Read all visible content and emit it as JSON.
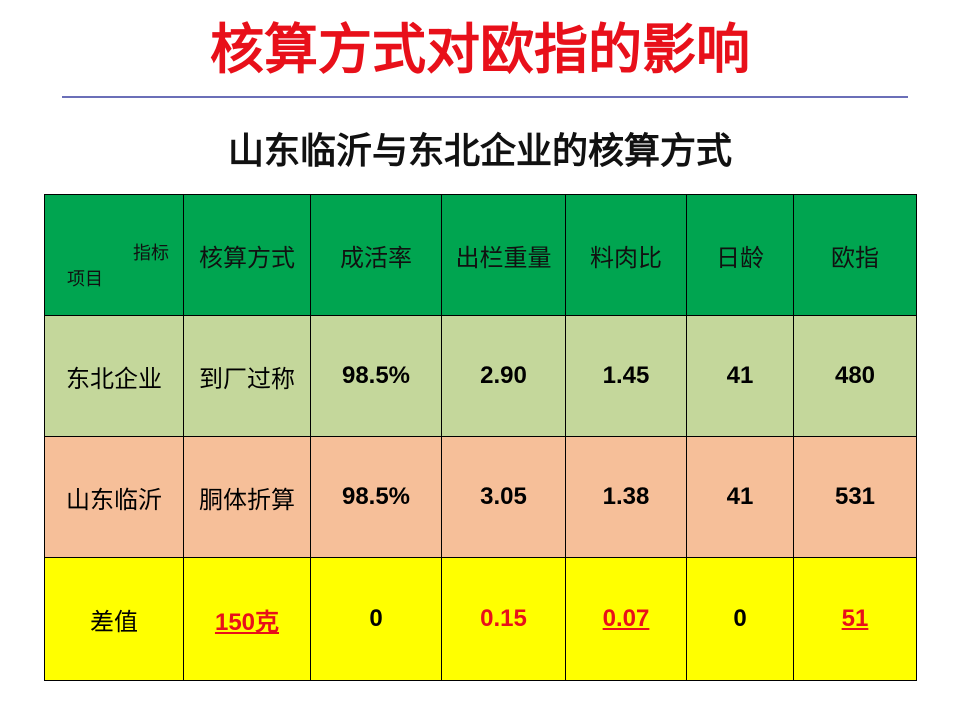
{
  "title": "核算方式对欧指的影响",
  "subtitle": "山东临沂与东北企业的核算方式",
  "table": {
    "corner": {
      "top": "指标",
      "bottom": "项目"
    },
    "headers": [
      "核算方式",
      "成活率",
      "出栏重量",
      "料肉比",
      "日龄",
      "欧指"
    ],
    "rows": [
      {
        "name": "东北企业",
        "cells": [
          "到厂过称",
          "98.5%",
          "2.90",
          "1.45",
          "41",
          "480"
        ]
      },
      {
        "name": "山东临沂",
        "cells": [
          "胴体折算",
          "98.5%",
          "3.05",
          "1.38",
          "41",
          "531"
        ]
      },
      {
        "name": "差值",
        "cells": [
          "150克",
          "0",
          "0.15",
          "0.07",
          "0",
          "51"
        ]
      }
    ]
  },
  "colors": {
    "title": "#e8101a",
    "header_bg": "#00a550",
    "row_northeast_bg": "#c4d79b",
    "row_shandong_bg": "#f6bf99",
    "row_diff_bg": "#ffff00",
    "highlight_text": "#e8101a"
  }
}
